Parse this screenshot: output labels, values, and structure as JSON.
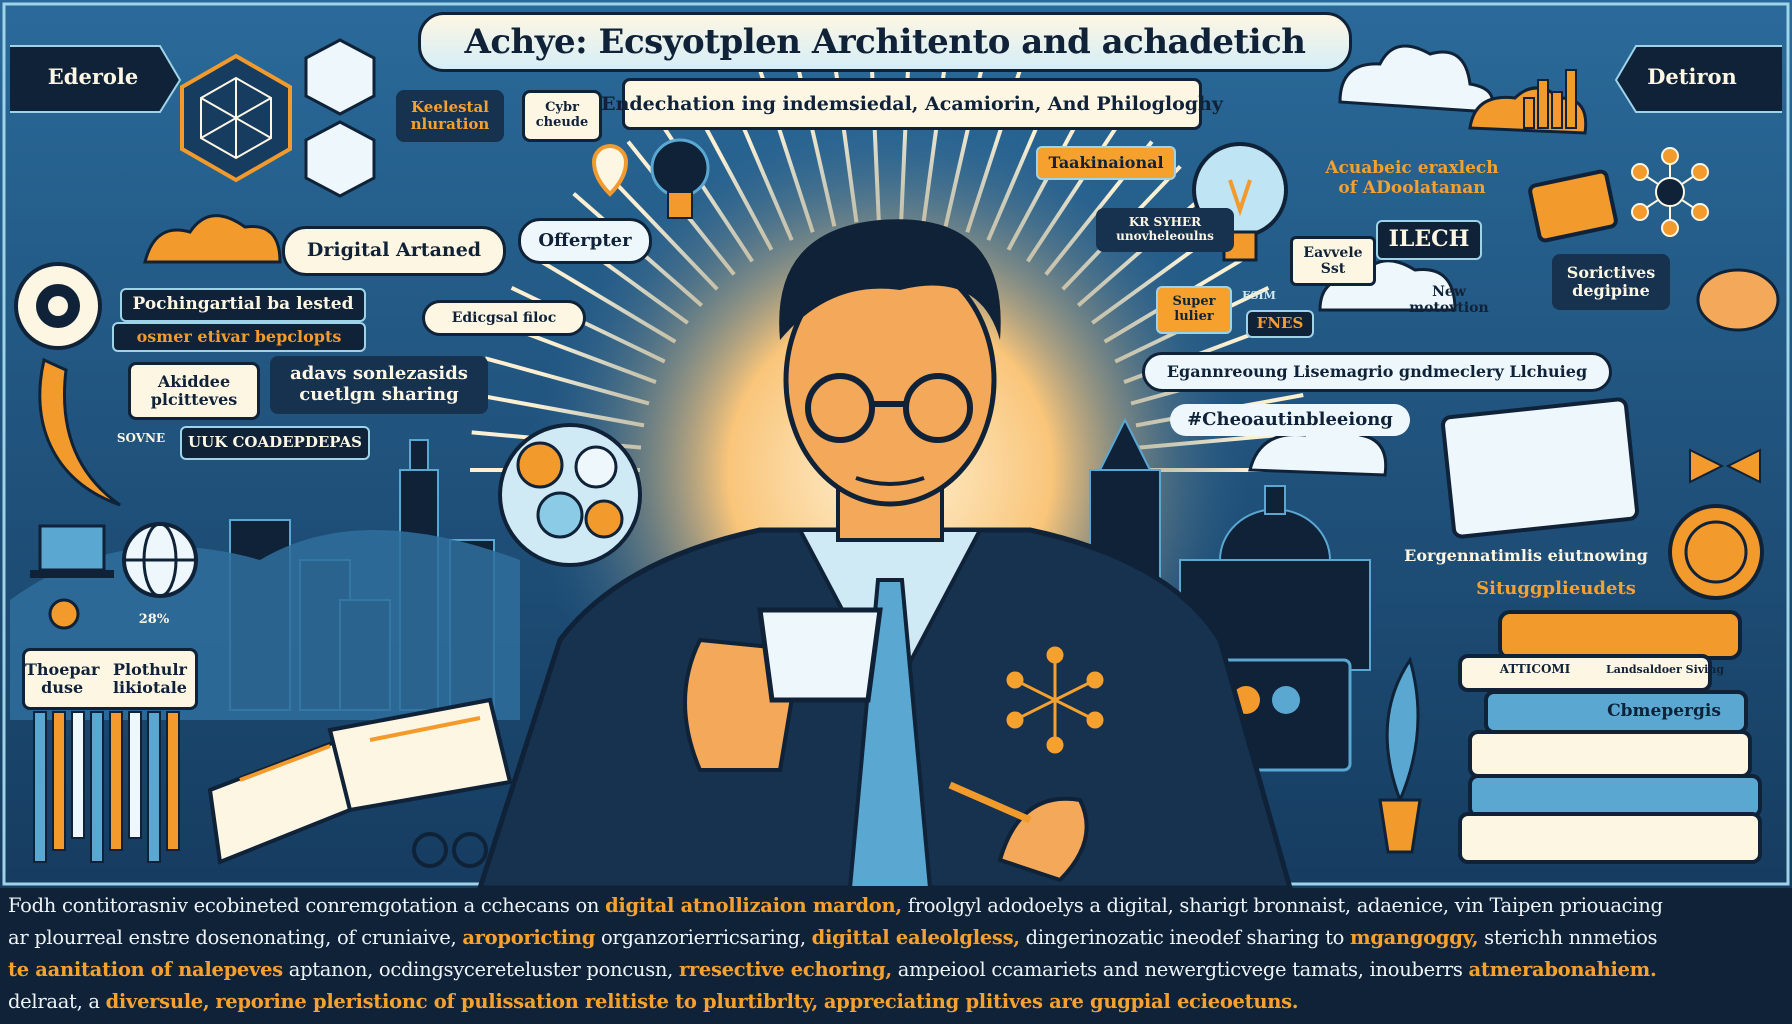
{
  "header": {
    "title": "Achye: Ecsyotplen Architento and achadetich",
    "subtitle": "Endechation ing indemsiedal, Acamiorin, And Philogloghy",
    "corner_left": "Ederole",
    "corner_right": "Detiron"
  },
  "labels": {
    "keelestal": "Keelestal nluration",
    "cybr": "Cybr cheude",
    "taakinaional": "Taakinaional",
    "acuabeic": "Acuabeic eraxlech of ADoolatanan",
    "kr_syher": "KR SYHER unovheleoulns",
    "lech": "ILECH",
    "digital_artaned": "Drigital Artaned",
    "offerpter": "Offerpter",
    "eavvele": "Eavvele Sst",
    "sorictives": "Sorictives degipine",
    "super_lulier": "Super lulier",
    "esim": "ESIM",
    "fnes": "FNES",
    "new_motovtion": "New motovtion",
    "pochingartial": "Pochingartial ba lested",
    "osmer": "osmer etivar bepclopts",
    "edicgsal": "Edicgsal filoc",
    "akiddee": "Akiddee plcitteves",
    "adavs": "adavs sonlezasids cuetlgn sharing",
    "egann": "Egannreoung Lisemagrio gndmeclery Llchuieg",
    "cheauti": "#Cheoautinbleeiong",
    "uuk": "UUK COADEPDEPAS",
    "sovne": "SOVNE",
    "eorgen": "Eorgennatimlis eiutnowing",
    "situg": "Situggplieudets",
    "percent": "28%",
    "thoepar": "Thoepar duse",
    "plothu": "Plothulr likiotale",
    "atticomi": "ATTICOMI",
    "landsal": "Landsaldoer Siving",
    "cbmepergis": "Cbmepergis"
  },
  "caption": {
    "line1": [
      {
        "t": "Fodh contitorasniv ecobineted conremgotation a cchecans on ",
        "hl": false
      },
      {
        "t": "digital atnollizaion mardon,",
        "hl": true
      },
      {
        "t": " froolgyl adodoelys a digital, sharigt bronnaist, adaenice, vin Taipen priouacing",
        "hl": false
      }
    ],
    "line2": [
      {
        "t": "ar plourreal enstre dosenonating, of cruniaive, ",
        "hl": false
      },
      {
        "t": "aroporicting",
        "hl": true
      },
      {
        "t": " organzorierricsaring, ",
        "hl": false
      },
      {
        "t": "digittal ealeolgless,",
        "hl": true
      },
      {
        "t": " dingerinozatic ineodef sharing to ",
        "hl": false
      },
      {
        "t": "mgangoggy,",
        "hl": true
      },
      {
        "t": " sterichh nnmetios",
        "hl": false
      }
    ],
    "line3": [
      {
        "t": "te aanitation of nalepeves",
        "hl": true
      },
      {
        "t": " aptanon, ocdingsycereteluster poncusn, ",
        "hl": false
      },
      {
        "t": "rresective echoring,",
        "hl": true
      },
      {
        "t": " ampeiool ccamariets and newergticvege tamats, inouberrs ",
        "hl": false
      },
      {
        "t": "atmerabonahiem.",
        "hl": true
      }
    ],
    "line4": [
      {
        "t": "delraat, a ",
        "hl": false
      },
      {
        "t": "diversule,",
        "hl": true
      },
      {
        "t": " ",
        "hl": false
      },
      {
        "t": "reporine pleristionc of pulissation relitiste to plurtibrlty,",
        "hl": true
      },
      {
        "t": " ",
        "hl": false
      },
      {
        "t": "appreciating plitives are gugpial ecieoetuns.",
        "hl": true
      }
    ]
  },
  "colors": {
    "navy": "#0f2238",
    "sky": "#5aa7d1",
    "orange": "#f39a2c",
    "cream": "#fdf6e3"
  }
}
